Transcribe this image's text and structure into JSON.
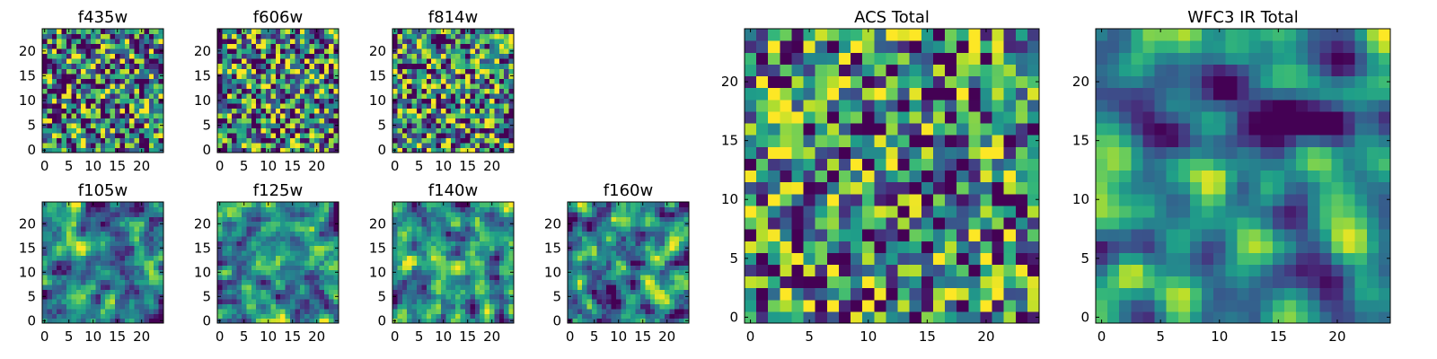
{
  "chart_data": [
    {
      "type": "heatmap",
      "title": "f435w",
      "xticks": [
        0,
        5,
        10,
        15,
        20
      ],
      "yticks": [
        0,
        5,
        10,
        15,
        20
      ],
      "grid_size": 25,
      "colormap": "viridis",
      "grid": false,
      "smoothness": 0,
      "seed": 11
    },
    {
      "type": "heatmap",
      "title": "f606w",
      "xticks": [
        0,
        5,
        10,
        15,
        20
      ],
      "yticks": [
        0,
        5,
        10,
        15,
        20
      ],
      "grid_size": 25,
      "colormap": "viridis",
      "grid": false,
      "smoothness": 0,
      "seed": 23
    },
    {
      "type": "heatmap",
      "title": "f814w",
      "xticks": [
        0,
        5,
        10,
        15,
        20
      ],
      "yticks": [
        0,
        5,
        10,
        15,
        20
      ],
      "grid_size": 25,
      "colormap": "viridis",
      "grid": false,
      "smoothness": 0,
      "seed": 37
    },
    {
      "type": "heatmap",
      "title": "f105w",
      "xticks": [
        0,
        5,
        10,
        15,
        20
      ],
      "yticks": [
        0,
        5,
        10,
        15,
        20
      ],
      "grid_size": 25,
      "colormap": "viridis",
      "grid": false,
      "smoothness": 1,
      "seed": 41
    },
    {
      "type": "heatmap",
      "title": "f125w",
      "xticks": [
        0,
        5,
        10,
        15,
        20
      ],
      "yticks": [
        0,
        5,
        10,
        15,
        20
      ],
      "grid_size": 25,
      "colormap": "viridis",
      "grid": false,
      "smoothness": 1,
      "seed": 53
    },
    {
      "type": "heatmap",
      "title": "f140w",
      "xticks": [
        0,
        5,
        10,
        15,
        20
      ],
      "yticks": [
        0,
        5,
        10,
        15,
        20
      ],
      "grid_size": 25,
      "colormap": "viridis",
      "grid": false,
      "smoothness": 1,
      "seed": 67
    },
    {
      "type": "heatmap",
      "title": "f160w",
      "xticks": [
        0,
        5,
        10,
        15,
        20
      ],
      "yticks": [
        0,
        5,
        10,
        15,
        20
      ],
      "grid_size": 25,
      "colormap": "viridis",
      "grid": false,
      "smoothness": 1,
      "seed": 79
    },
    {
      "type": "heatmap",
      "title": "ACS Total",
      "xticks": [
        0,
        5,
        10,
        15,
        20
      ],
      "yticks": [
        0,
        5,
        10,
        15,
        20
      ],
      "grid_size": 25,
      "colormap": "viridis",
      "grid": false,
      "smoothness": 0,
      "seed": 83
    },
    {
      "type": "heatmap",
      "title": "WFC3 IR Total",
      "xticks": [
        0,
        5,
        10,
        15,
        20
      ],
      "yticks": [
        0,
        5,
        10,
        15,
        20
      ],
      "grid_size": 25,
      "colormap": "viridis",
      "grid": false,
      "smoothness": 2,
      "seed": 97
    }
  ]
}
